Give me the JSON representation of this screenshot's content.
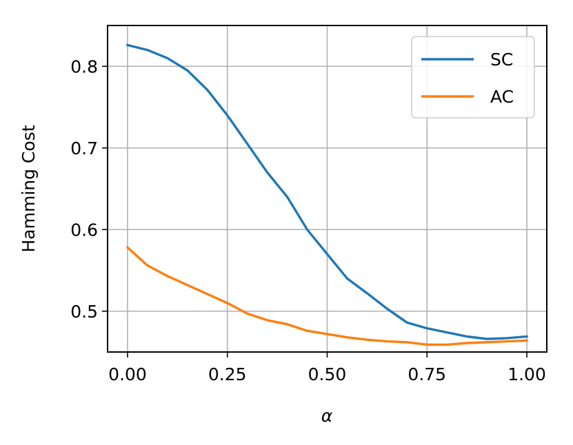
{
  "chart_data": {
    "type": "line",
    "xlabel": "α",
    "ylabel": "Hamming Cost",
    "xlim": [
      -0.05,
      1.05
    ],
    "ylim": [
      0.45,
      0.85
    ],
    "xticks": [
      0.0,
      0.25,
      0.5,
      0.75,
      1.0
    ],
    "xtick_labels": [
      "0.00",
      "0.25",
      "0.50",
      "0.75",
      "1.00"
    ],
    "yticks": [
      0.5,
      0.6,
      0.7,
      0.8
    ],
    "ytick_labels": [
      "0.5",
      "0.6",
      "0.7",
      "0.8"
    ],
    "grid": true,
    "legend_position": "top-right",
    "x": [
      0.0,
      0.05,
      0.1,
      0.15,
      0.2,
      0.25,
      0.3,
      0.35,
      0.4,
      0.45,
      0.5,
      0.55,
      0.6,
      0.65,
      0.7,
      0.75,
      0.8,
      0.85,
      0.9,
      0.95,
      1.0
    ],
    "series": [
      {
        "name": "SC",
        "color": "#1f77b4",
        "values": [
          0.826,
          0.82,
          0.81,
          0.795,
          0.771,
          0.74,
          0.705,
          0.67,
          0.64,
          0.6,
          0.57,
          0.54,
          0.522,
          0.503,
          0.486,
          0.479,
          0.474,
          0.469,
          0.466,
          0.467,
          0.469
        ]
      },
      {
        "name": "AC",
        "color": "#ff7f0e",
        "values": [
          0.578,
          0.556,
          0.543,
          0.532,
          0.521,
          0.51,
          0.497,
          0.489,
          0.484,
          0.476,
          0.472,
          0.468,
          0.465,
          0.463,
          0.462,
          0.459,
          0.459,
          0.461,
          0.462,
          0.463,
          0.464
        ]
      }
    ]
  }
}
